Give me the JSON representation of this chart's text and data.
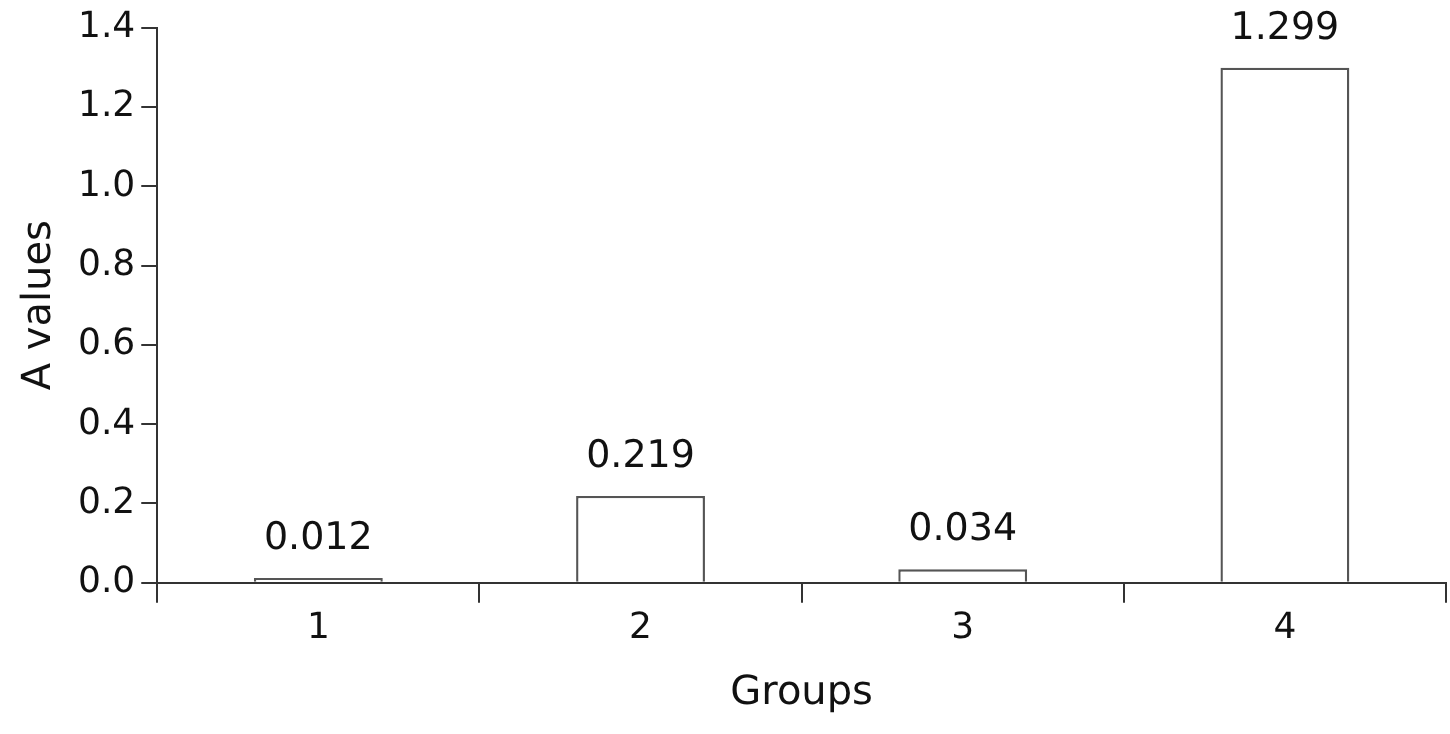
{
  "chart_data": {
    "type": "bar",
    "xlabel": "Groups",
    "ylabel": "A values",
    "categories": [
      "1",
      "2",
      "3",
      "4"
    ],
    "values": [
      0.012,
      0.219,
      0.034,
      1.299
    ],
    "color": "#ffffff",
    "ylim": [
      0,
      1.4
    ],
    "yticks": [
      {
        "value": 0,
        "label": "0.0"
      },
      0.2,
      0.4,
      0.6,
      0.8,
      {
        "value": 1,
        "label": "1.0"
      },
      1.2,
      1.4
    ],
    "data_labels": true,
    "grid": false,
    "legend": false
  }
}
